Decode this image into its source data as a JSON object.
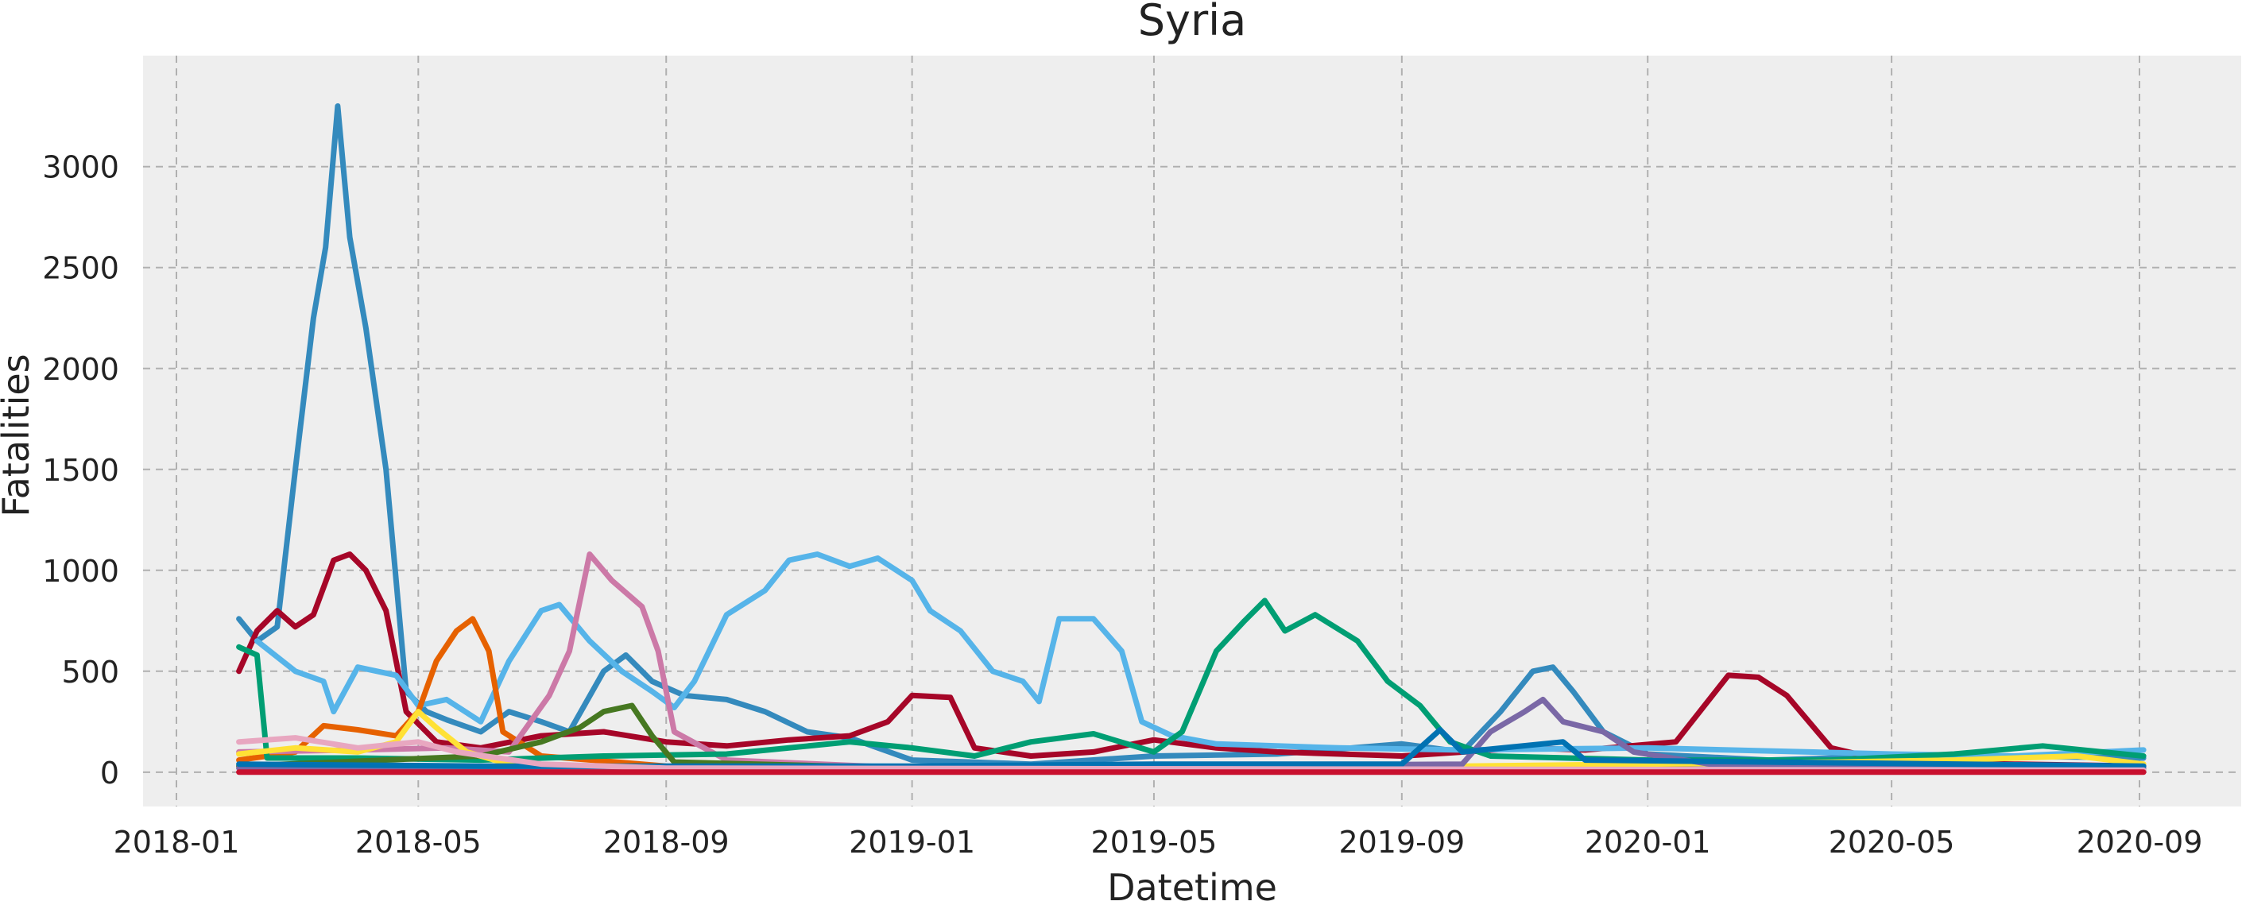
{
  "chart_data": {
    "type": "line",
    "title": "Syria",
    "xlabel": "Datetime",
    "ylabel": "Fatalities",
    "xlim": [
      "2018-01-01",
      "2020-09-30"
    ],
    "ylim": [
      -170,
      3550
    ],
    "grid": true,
    "x_ticks": [
      "2018-01",
      "2018-05",
      "2018-09",
      "2019-01",
      "2019-05",
      "2019-09",
      "2020-01",
      "2020-05",
      "2020-09"
    ],
    "y_ticks": [
      0,
      500,
      1000,
      1500,
      2000,
      2500,
      3000
    ],
    "plot_background": "#eeeeee",
    "series": [
      {
        "color": "#348abd",
        "points": [
          [
            "2018-02-01",
            760
          ],
          [
            "2018-02-10",
            650
          ],
          [
            "2018-02-20",
            720
          ],
          [
            "2018-03-01",
            1500
          ],
          [
            "2018-03-10",
            2250
          ],
          [
            "2018-03-16",
            2600
          ],
          [
            "2018-03-22",
            3300
          ],
          [
            "2018-03-28",
            2650
          ],
          [
            "2018-04-05",
            2200
          ],
          [
            "2018-04-15",
            1500
          ],
          [
            "2018-04-25",
            400
          ],
          [
            "2018-05-05",
            300
          ],
          [
            "2018-05-15",
            260
          ],
          [
            "2018-06-01",
            200
          ],
          [
            "2018-06-15",
            300
          ],
          [
            "2018-07-01",
            250
          ],
          [
            "2018-07-15",
            200
          ],
          [
            "2018-08-01",
            500
          ],
          [
            "2018-08-12",
            580
          ],
          [
            "2018-08-25",
            450
          ],
          [
            "2018-09-10",
            380
          ],
          [
            "2018-10-01",
            360
          ],
          [
            "2018-10-20",
            300
          ],
          [
            "2018-11-10",
            200
          ],
          [
            "2018-12-01",
            170
          ],
          [
            "2019-01-01",
            60
          ],
          [
            "2019-03-01",
            40
          ],
          [
            "2019-05-01",
            80
          ],
          [
            "2019-07-01",
            90
          ],
          [
            "2019-09-01",
            140
          ],
          [
            "2019-10-01",
            100
          ],
          [
            "2019-10-20",
            300
          ],
          [
            "2019-11-05",
            500
          ],
          [
            "2019-11-15",
            520
          ],
          [
            "2019-11-25",
            400
          ],
          [
            "2019-12-10",
            200
          ],
          [
            "2020-01-01",
            90
          ],
          [
            "2020-03-01",
            60
          ],
          [
            "2020-05-01",
            80
          ],
          [
            "2020-07-01",
            80
          ],
          [
            "2020-09-03",
            70
          ]
        ]
      },
      {
        "color": "#a60628",
        "points": [
          [
            "2018-02-01",
            500
          ],
          [
            "2018-02-10",
            700
          ],
          [
            "2018-02-20",
            800
          ],
          [
            "2018-03-01",
            720
          ],
          [
            "2018-03-10",
            780
          ],
          [
            "2018-03-20",
            1050
          ],
          [
            "2018-03-28",
            1080
          ],
          [
            "2018-04-05",
            1000
          ],
          [
            "2018-04-15",
            800
          ],
          [
            "2018-04-25",
            300
          ],
          [
            "2018-05-10",
            150
          ],
          [
            "2018-06-01",
            120
          ],
          [
            "2018-07-01",
            180
          ],
          [
            "2018-08-01",
            200
          ],
          [
            "2018-09-01",
            150
          ],
          [
            "2018-10-01",
            130
          ],
          [
            "2018-11-01",
            160
          ],
          [
            "2018-12-01",
            180
          ],
          [
            "2018-12-20",
            250
          ],
          [
            "2019-01-01",
            380
          ],
          [
            "2019-01-20",
            370
          ],
          [
            "2019-02-01",
            120
          ],
          [
            "2019-03-01",
            80
          ],
          [
            "2019-04-01",
            100
          ],
          [
            "2019-05-01",
            160
          ],
          [
            "2019-06-01",
            120
          ],
          [
            "2019-07-01",
            100
          ],
          [
            "2019-09-01",
            80
          ],
          [
            "2019-11-01",
            120
          ],
          [
            "2019-12-01",
            110
          ],
          [
            "2020-01-15",
            150
          ],
          [
            "2020-02-10",
            480
          ],
          [
            "2020-02-25",
            470
          ],
          [
            "2020-03-10",
            380
          ],
          [
            "2020-04-01",
            120
          ],
          [
            "2020-05-01",
            50
          ],
          [
            "2020-07-01",
            40
          ],
          [
            "2020-09-03",
            30
          ]
        ]
      },
      {
        "color": "#56b4e9",
        "points": [
          [
            "2018-02-10",
            650
          ],
          [
            "2018-03-01",
            500
          ],
          [
            "2018-03-15",
            450
          ],
          [
            "2018-03-20",
            300
          ],
          [
            "2018-04-01",
            520
          ],
          [
            "2018-04-20",
            480
          ],
          [
            "2018-05-01",
            330
          ],
          [
            "2018-05-15",
            360
          ],
          [
            "2018-06-01",
            250
          ],
          [
            "2018-06-15",
            550
          ],
          [
            "2018-07-01",
            800
          ],
          [
            "2018-07-10",
            830
          ],
          [
            "2018-07-25",
            650
          ],
          [
            "2018-08-10",
            500
          ],
          [
            "2018-08-25",
            400
          ],
          [
            "2018-09-05",
            320
          ],
          [
            "2018-09-15",
            450
          ],
          [
            "2018-10-01",
            780
          ],
          [
            "2018-10-20",
            900
          ],
          [
            "2018-11-01",
            1050
          ],
          [
            "2018-11-15",
            1080
          ],
          [
            "2018-12-01",
            1020
          ],
          [
            "2018-12-15",
            1060
          ],
          [
            "2019-01-01",
            950
          ],
          [
            "2019-01-10",
            800
          ],
          [
            "2019-01-25",
            700
          ],
          [
            "2019-02-10",
            500
          ],
          [
            "2019-02-25",
            450
          ],
          [
            "2019-03-05",
            350
          ],
          [
            "2019-03-15",
            760
          ],
          [
            "2019-04-01",
            760
          ],
          [
            "2019-04-15",
            600
          ],
          [
            "2019-04-25",
            250
          ],
          [
            "2019-05-10",
            180
          ],
          [
            "2019-06-01",
            140
          ],
          [
            "2019-08-01",
            120
          ],
          [
            "2019-10-01",
            110
          ],
          [
            "2020-01-01",
            120
          ],
          [
            "2020-05-01",
            90
          ],
          [
            "2020-07-01",
            80
          ],
          [
            "2020-09-03",
            110
          ]
        ]
      },
      {
        "color": "#e66100",
        "points": [
          [
            "2018-02-01",
            60
          ],
          [
            "2018-03-01",
            100
          ],
          [
            "2018-03-15",
            230
          ],
          [
            "2018-04-01",
            210
          ],
          [
            "2018-04-20",
            180
          ],
          [
            "2018-05-01",
            300
          ],
          [
            "2018-05-10",
            550
          ],
          [
            "2018-05-20",
            700
          ],
          [
            "2018-05-28",
            760
          ],
          [
            "2018-06-05",
            600
          ],
          [
            "2018-06-12",
            200
          ],
          [
            "2018-07-01",
            80
          ],
          [
            "2018-09-01",
            30
          ],
          [
            "2019-01-01",
            20
          ],
          [
            "2020-09-03",
            10
          ]
        ]
      },
      {
        "color": "#cc79a7",
        "points": [
          [
            "2018-02-01",
            100
          ],
          [
            "2018-04-01",
            110
          ],
          [
            "2018-05-15",
            120
          ],
          [
            "2018-06-15",
            100
          ],
          [
            "2018-07-05",
            380
          ],
          [
            "2018-07-15",
            600
          ],
          [
            "2018-07-25",
            1080
          ],
          [
            "2018-08-05",
            950
          ],
          [
            "2018-08-20",
            820
          ],
          [
            "2018-08-28",
            600
          ],
          [
            "2018-09-05",
            200
          ],
          [
            "2018-10-01",
            60
          ],
          [
            "2019-01-01",
            20
          ],
          [
            "2020-09-03",
            10
          ]
        ]
      },
      {
        "color": "#009e73",
        "points": [
          [
            "2018-02-01",
            620
          ],
          [
            "2018-02-10",
            580
          ],
          [
            "2018-02-15",
            70
          ],
          [
            "2018-04-01",
            70
          ],
          [
            "2018-06-01",
            60
          ],
          [
            "2018-08-01",
            80
          ],
          [
            "2018-10-01",
            90
          ],
          [
            "2018-12-01",
            150
          ],
          [
            "2019-01-01",
            120
          ],
          [
            "2019-02-01",
            80
          ],
          [
            "2019-03-01",
            150
          ],
          [
            "2019-04-01",
            190
          ],
          [
            "2019-05-01",
            100
          ],
          [
            "2019-05-15",
            200
          ],
          [
            "2019-06-01",
            600
          ],
          [
            "2019-06-15",
            750
          ],
          [
            "2019-06-25",
            850
          ],
          [
            "2019-07-05",
            700
          ],
          [
            "2019-07-20",
            780
          ],
          [
            "2019-08-10",
            650
          ],
          [
            "2019-08-25",
            450
          ],
          [
            "2019-09-10",
            330
          ],
          [
            "2019-09-25",
            150
          ],
          [
            "2019-10-15",
            80
          ],
          [
            "2020-01-01",
            60
          ],
          [
            "2020-04-01",
            60
          ],
          [
            "2020-06-01",
            90
          ],
          [
            "2020-07-15",
            130
          ],
          [
            "2020-09-03",
            80
          ]
        ]
      },
      {
        "color": "#467821",
        "points": [
          [
            "2018-02-01",
            30
          ],
          [
            "2018-06-01",
            80
          ],
          [
            "2018-07-01",
            150
          ],
          [
            "2018-07-20",
            220
          ],
          [
            "2018-08-01",
            300
          ],
          [
            "2018-08-15",
            330
          ],
          [
            "2018-08-25",
            180
          ],
          [
            "2018-09-05",
            50
          ],
          [
            "2019-01-01",
            20
          ],
          [
            "2020-09-03",
            10
          ]
        ]
      },
      {
        "color": "#ffe135",
        "points": [
          [
            "2018-02-01",
            90
          ],
          [
            "2018-03-01",
            120
          ],
          [
            "2018-04-01",
            100
          ],
          [
            "2018-04-20",
            150
          ],
          [
            "2018-05-01",
            300
          ],
          [
            "2018-05-10",
            220
          ],
          [
            "2018-05-25",
            100
          ],
          [
            "2018-06-15",
            40
          ],
          [
            "2018-09-01",
            20
          ],
          [
            "2019-06-01",
            20
          ],
          [
            "2019-10-01",
            30
          ],
          [
            "2020-04-01",
            50
          ],
          [
            "2020-06-01",
            60
          ],
          [
            "2020-08-01",
            80
          ],
          [
            "2020-09-03",
            40
          ]
        ]
      },
      {
        "color": "#7a68a6",
        "points": [
          [
            "2018-02-01",
            20
          ],
          [
            "2019-01-01",
            20
          ],
          [
            "2019-10-01",
            40
          ],
          [
            "2019-10-15",
            200
          ],
          [
            "2019-11-01",
            300
          ],
          [
            "2019-11-10",
            360
          ],
          [
            "2019-11-20",
            250
          ],
          [
            "2019-12-10",
            200
          ],
          [
            "2019-12-25",
            100
          ],
          [
            "2020-02-01",
            40
          ],
          [
            "2020-09-03",
            20
          ]
        ]
      },
      {
        "color": "#0072b2",
        "points": [
          [
            "2018-02-01",
            40
          ],
          [
            "2018-06-01",
            30
          ],
          [
            "2019-01-01",
            30
          ],
          [
            "2019-05-01",
            40
          ],
          [
            "2019-09-01",
            40
          ],
          [
            "2019-09-20",
            210
          ],
          [
            "2019-10-01",
            100
          ],
          [
            "2019-11-20",
            150
          ],
          [
            "2019-12-01",
            60
          ],
          [
            "2020-09-03",
            30
          ]
        ]
      },
      {
        "color": "#e8a7c0",
        "points": [
          [
            "2018-02-01",
            150
          ],
          [
            "2018-03-01",
            170
          ],
          [
            "2018-04-01",
            120
          ],
          [
            "2018-05-01",
            150
          ],
          [
            "2018-05-20",
            100
          ],
          [
            "2018-07-01",
            40
          ],
          [
            "2018-09-01",
            20
          ],
          [
            "2020-09-03",
            10
          ]
        ]
      },
      {
        "color": "#c8102e",
        "points": [
          [
            "2018-02-01",
            0
          ],
          [
            "2020-09-03",
            0
          ]
        ]
      }
    ]
  }
}
